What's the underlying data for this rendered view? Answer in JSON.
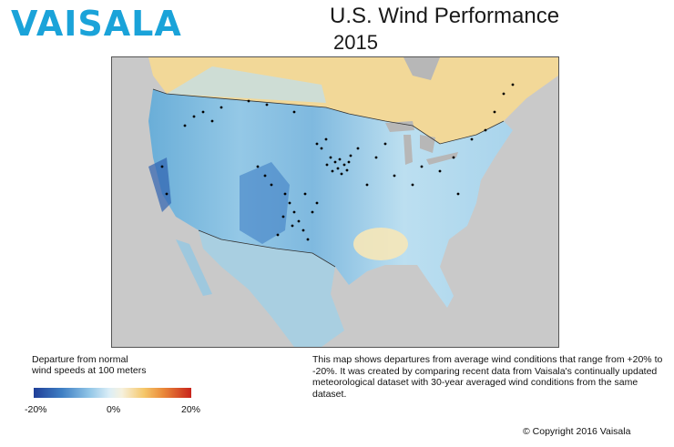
{
  "brand": {
    "logo_text": "VAISALA",
    "color": "#1aa3d9"
  },
  "header": {
    "title": "U.S. Wind Performance",
    "subtitle": "2015"
  },
  "map": {
    "icon": "united-states-wind-anomaly-map",
    "colors": {
      "ocean": "#c9c9c9",
      "canada": "#f2d898",
      "lakes": "#b7b7b7",
      "wind_farm_dots": "#000000"
    }
  },
  "legend": {
    "title_line1": "Departure from normal",
    "title_line2": "wind speeds at 100 meters",
    "tick_min": "-20%",
    "tick_mid": "0%",
    "tick_max": "20%",
    "color_stops": [
      "#1f3f98",
      "#3f7fc4",
      "#8fc4e6",
      "#dbeef7",
      "#f6f1dd",
      "#f5c76a",
      "#ea8a3a",
      "#c8241c"
    ]
  },
  "description": "This map shows departures from average wind conditions that range from +20% to -20%. It was created by comparing recent data from Vaisala's continually updated meteorological dataset with 30-year averaged wind conditions from the same dataset.",
  "footer": {
    "copyright": "© Copyright 2016 Vaisala"
  }
}
